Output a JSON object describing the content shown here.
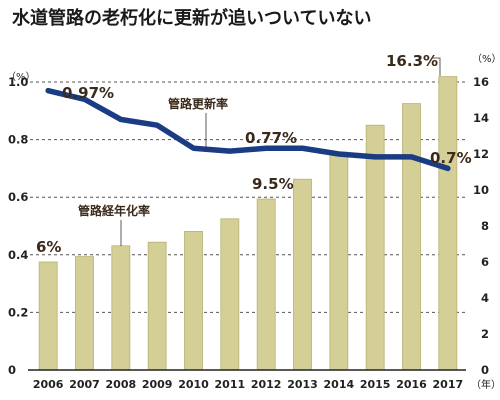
{
  "chart_data": {
    "type": "bar+line",
    "title": "水道管路の老朽化に更新が追いついていない",
    "categories": [
      "2006",
      "2007",
      "2008",
      "2009",
      "2010",
      "2011",
      "2012",
      "2013",
      "2014",
      "2015",
      "2016",
      "2017"
    ],
    "x_unit": "（年）",
    "series": [
      {
        "name": "管路経年化率",
        "type": "bar",
        "axis": "right",
        "values": [
          6.0,
          6.3,
          6.9,
          7.1,
          7.7,
          8.4,
          9.5,
          10.6,
          12.1,
          13.6,
          14.8,
          16.3
        ]
      },
      {
        "name": "管路更新率",
        "type": "line",
        "axis": "left",
        "values": [
          0.97,
          0.94,
          0.87,
          0.85,
          0.77,
          0.76,
          0.77,
          0.77,
          0.75,
          0.74,
          0.74,
          0.7
        ]
      }
    ],
    "left_axis": {
      "unit": "（%）",
      "ylim": [
        0,
        1.0
      ],
      "ticks": [
        "0",
        "0.2",
        "0.4",
        "0.6",
        "0.8",
        "1.0"
      ]
    },
    "right_axis": {
      "unit": "（%）",
      "ylim": [
        0,
        16
      ],
      "ticks": [
        "0",
        "2",
        "4",
        "6",
        "8",
        "10",
        "12",
        "14",
        "16"
      ]
    },
    "annotations": {
      "rate_2006": "0.97%",
      "rate_2012": "0.77%",
      "rate_2017": "0.7%",
      "aging_2006": "6%",
      "aging_2012": "9.5%",
      "aging_2017": "16.3%"
    },
    "grid": "dashed horizontal",
    "colors": {
      "bar": "#d4cf96",
      "bar_edge": "#b7b070",
      "line": "#1a3c82",
      "text": "#3a2a1a"
    }
  }
}
